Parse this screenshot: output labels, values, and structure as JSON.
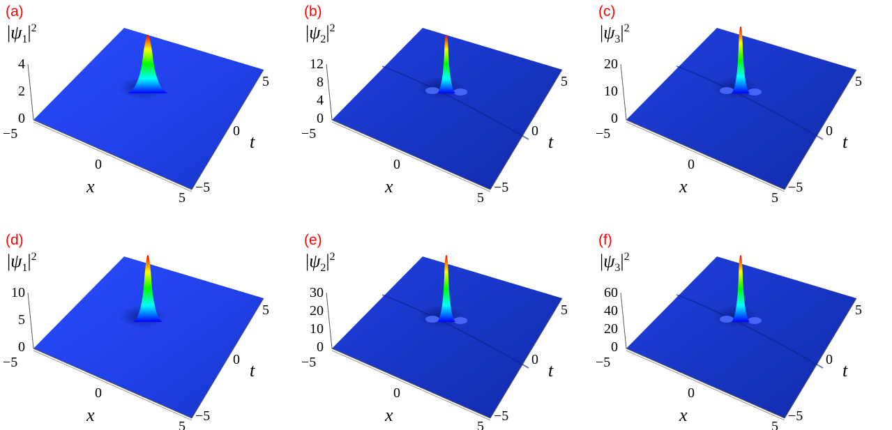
{
  "chart_data": [
    {
      "type": "surface3d",
      "panel": "(a)",
      "zlabel_base": "ψ",
      "zlabel_sub": "1",
      "zlabel_sup": "2",
      "xlabel": "x",
      "ylabel": "t",
      "x_ticks": [
        "−5",
        "0",
        "5"
      ],
      "t_ticks": [
        "5",
        "0",
        "−5"
      ],
      "z_ticks": [
        "0",
        "2",
        "4"
      ],
      "xlim": [
        -5,
        5
      ],
      "tlim": [
        -5,
        5
      ],
      "zlim": [
        0,
        4
      ],
      "peak": 4,
      "colormap": [
        "#0000ff",
        "#00ffff",
        "#00ff00",
        "#ffff00",
        "#ff0000"
      ]
    },
    {
      "type": "surface3d",
      "panel": "(b)",
      "zlabel_base": "ψ",
      "zlabel_sub": "2",
      "zlabel_sup": "2",
      "xlabel": "x",
      "ylabel": "t",
      "x_ticks": [
        "−5",
        "0",
        "5"
      ],
      "t_ticks": [
        "5",
        "0",
        "−5"
      ],
      "z_ticks": [
        "0",
        "4",
        "8",
        "12"
      ],
      "xlim": [
        -5,
        5
      ],
      "tlim": [
        -5,
        5
      ],
      "zlim": [
        0,
        12
      ],
      "peak": 12,
      "colormap": [
        "#0000ff",
        "#00ffff",
        "#00ff00",
        "#ffff00",
        "#ff0000"
      ]
    },
    {
      "type": "surface3d",
      "panel": "(c)",
      "zlabel_base": "ψ",
      "zlabel_sub": "3",
      "zlabel_sup": "2",
      "xlabel": "x",
      "ylabel": "t",
      "x_ticks": [
        "−5",
        "0",
        "5"
      ],
      "t_ticks": [
        "5",
        "0",
        "−5"
      ],
      "z_ticks": [
        "0",
        "10",
        "20"
      ],
      "xlim": [
        -5,
        5
      ],
      "tlim": [
        -5,
        5
      ],
      "zlim": [
        0,
        20
      ],
      "peak": 24,
      "colormap": [
        "#0000ff",
        "#00ffff",
        "#00ff00",
        "#ffff00",
        "#ff0000"
      ]
    },
    {
      "type": "surface3d",
      "panel": "(d)",
      "zlabel_base": "ψ",
      "zlabel_sub": "1",
      "zlabel_sup": "2",
      "xlabel": "x",
      "ylabel": "t",
      "x_ticks": [
        "−5",
        "0",
        "5"
      ],
      "t_ticks": [
        "5",
        "0",
        "−5"
      ],
      "z_ticks": [
        "0",
        "5",
        "10"
      ],
      "xlim": [
        -5,
        5
      ],
      "tlim": [
        -5,
        5
      ],
      "zlim": [
        0,
        10
      ],
      "peak": 13,
      "colormap": [
        "#0000ff",
        "#00ffff",
        "#00ff00",
        "#ffff00",
        "#ff0000"
      ]
    },
    {
      "type": "surface3d",
      "panel": "(e)",
      "zlabel_base": "ψ",
      "zlabel_sub": "2",
      "zlabel_sup": "2",
      "xlabel": "x",
      "ylabel": "t",
      "x_ticks": [
        "−5",
        "0",
        "5"
      ],
      "t_ticks": [
        "5",
        "0",
        "−5"
      ],
      "z_ticks": [
        "0",
        "10",
        "20",
        "30"
      ],
      "xlim": [
        -5,
        5
      ],
      "tlim": [
        -5,
        5
      ],
      "zlim": [
        0,
        30
      ],
      "peak": 36,
      "colormap": [
        "#0000ff",
        "#00ffff",
        "#00ff00",
        "#ffff00",
        "#ff0000"
      ]
    },
    {
      "type": "surface3d",
      "panel": "(f)",
      "zlabel_base": "ψ",
      "zlabel_sub": "3",
      "zlabel_sup": "2",
      "xlabel": "x",
      "ylabel": "t",
      "x_ticks": [
        "−5",
        "0",
        "5"
      ],
      "t_ticks": [
        "5",
        "0",
        "−5"
      ],
      "z_ticks": [
        "0",
        "20",
        "40",
        "60"
      ],
      "xlim": [
        -5,
        5
      ],
      "tlim": [
        -5,
        5
      ],
      "zlim": [
        0,
        60
      ],
      "peak": 70,
      "colormap": [
        "#0000ff",
        "#00ffff",
        "#00ff00",
        "#ffff00",
        "#ff0000"
      ]
    }
  ]
}
